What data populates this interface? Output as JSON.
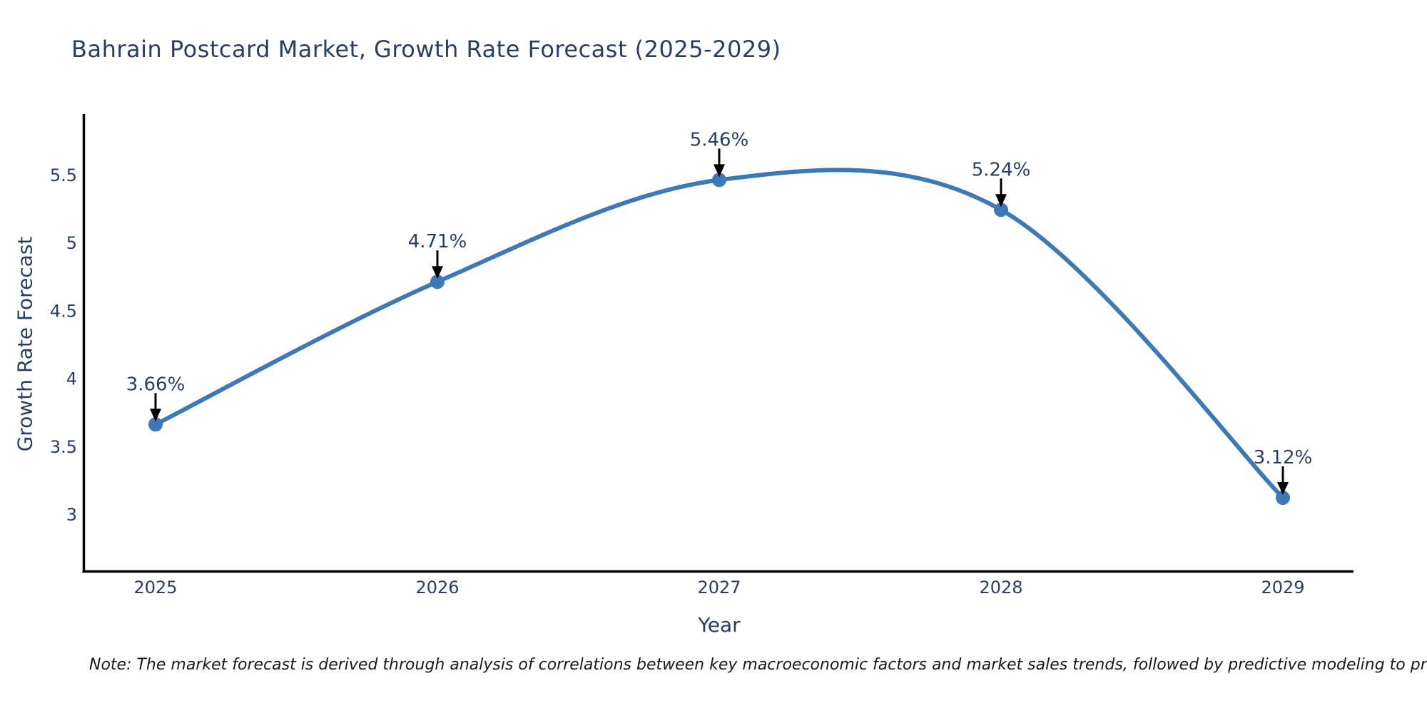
{
  "note": "Note: The market forecast is derived through analysis of correlations between key macroeconomic factors and market sales trends, followed by predictive modeling to project future sales",
  "chart_data": {
    "type": "line",
    "title": "Bahrain Postcard Market, Growth Rate Forecast (2025-2029)",
    "xlabel": "Year",
    "ylabel": "Growth Rate Forecast",
    "x": [
      2025,
      2026,
      2027,
      2028,
      2029
    ],
    "values": [
      3.66,
      4.71,
      5.46,
      5.24,
      3.12
    ],
    "labels": [
      "3.66%",
      "4.71%",
      "5.46%",
      "5.24%",
      "3.12%"
    ],
    "x_ticks": [
      "2025",
      "2026",
      "2027",
      "2028",
      "2029"
    ],
    "y_ticks": [
      "3",
      "3.5",
      "4",
      "4.5",
      "5",
      "5.5"
    ],
    "ylim": [
      2.58,
      5.94
    ],
    "line_shape": "spline",
    "grid": false,
    "legend": false,
    "colors": {
      "line": "#3c79b6",
      "marker": "#3c79b6",
      "arrow": "#000000",
      "axis": "#000000",
      "text": "#2a3f5f"
    }
  }
}
